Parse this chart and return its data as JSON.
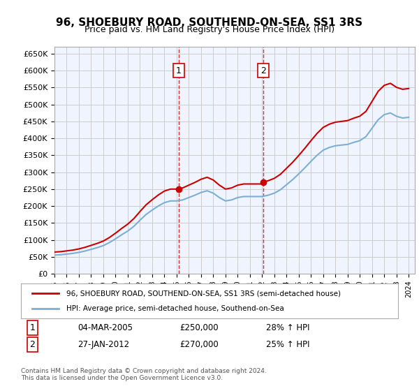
{
  "title": "96, SHOEBURY ROAD, SOUTHEND-ON-SEA, SS1 3RS",
  "subtitle": "Price paid vs. HM Land Registry's House Price Index (HPI)",
  "legend_line1": "96, SHOEBURY ROAD, SOUTHEND-ON-SEA, SS1 3RS (semi-detached house)",
  "legend_line2": "HPI: Average price, semi-detached house, Southend-on-Sea",
  "purchase1_label": "1",
  "purchase1_date": "04-MAR-2005",
  "purchase1_price": 250000,
  "purchase1_hpi": "28% ↑ HPI",
  "purchase2_label": "2",
  "purchase2_date": "27-JAN-2012",
  "purchase2_price": 270000,
  "purchase2_hpi": "25% ↑ HPI",
  "footer": "Contains HM Land Registry data © Crown copyright and database right 2024.\nThis data is licensed under the Open Government Licence v3.0.",
  "ylim": [
    0,
    670000
  ],
  "yticks": [
    0,
    50000,
    100000,
    150000,
    200000,
    250000,
    300000,
    350000,
    400000,
    450000,
    500000,
    550000,
    600000,
    650000
  ],
  "background_color": "#ffffff",
  "plot_bg_color": "#f0f4ff",
  "line_color_hpi": "#7bafd4",
  "line_color_price": "#cc0000",
  "dashed_line_color": "#cc0000",
  "marker_color": "#cc0000",
  "grid_color": "#cccccc"
}
